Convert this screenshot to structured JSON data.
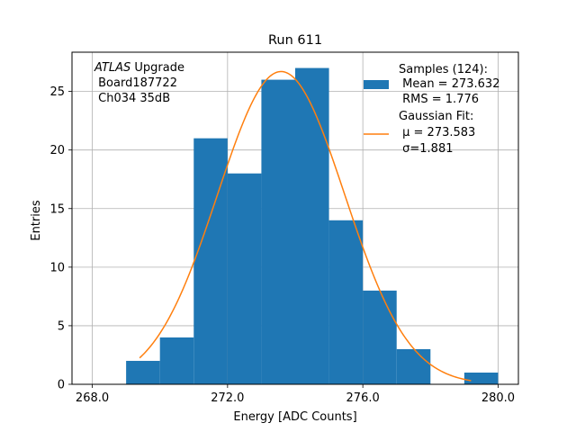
{
  "chart_data": {
    "type": "bar",
    "title": "Run 611",
    "xlabel": "Energy [ADC Counts]",
    "ylabel": "Entries",
    "xlim": [
      267.4,
      280.6
    ],
    "ylim": [
      0,
      28.35
    ],
    "grid": true,
    "legend_position": "top-right",
    "x_ticks": [
      268.0,
      272.0,
      276.0,
      280.0
    ],
    "x_tick_labels": [
      "268.0",
      "272.0",
      "276.0",
      "280.0"
    ],
    "y_ticks": [
      0,
      5,
      10,
      15,
      20,
      25
    ],
    "y_tick_labels": [
      "0",
      "5",
      "10",
      "15",
      "20",
      "25"
    ],
    "annotation": {
      "line1_italic": "ATLAS",
      "line1_rest": " Upgrade",
      "line2": " Board187722",
      "line3": " Ch034 35dB"
    },
    "histogram": {
      "bin_edges": [
        269.0,
        270.0,
        271.0,
        272.0,
        273.0,
        274.0,
        275.0,
        276.0,
        277.0,
        278.0,
        279.0,
        280.0
      ],
      "counts": [
        2,
        4,
        21,
        18,
        26,
        27,
        14,
        8,
        3,
        0,
        1
      ],
      "color": "#1f77b4",
      "legend_lines": [
        "Samples (124):",
        " Mean = 273.632",
        " RMS = 1.776"
      ]
    },
    "fit": {
      "mu": 273.583,
      "sigma": 1.881,
      "amplitude": 26.7,
      "x_range": [
        269.4,
        279.2
      ],
      "color": "#ff7f0e",
      "legend_lines": [
        "Gaussian Fit:",
        " μ = 273.583",
        " σ=1.881"
      ]
    }
  }
}
